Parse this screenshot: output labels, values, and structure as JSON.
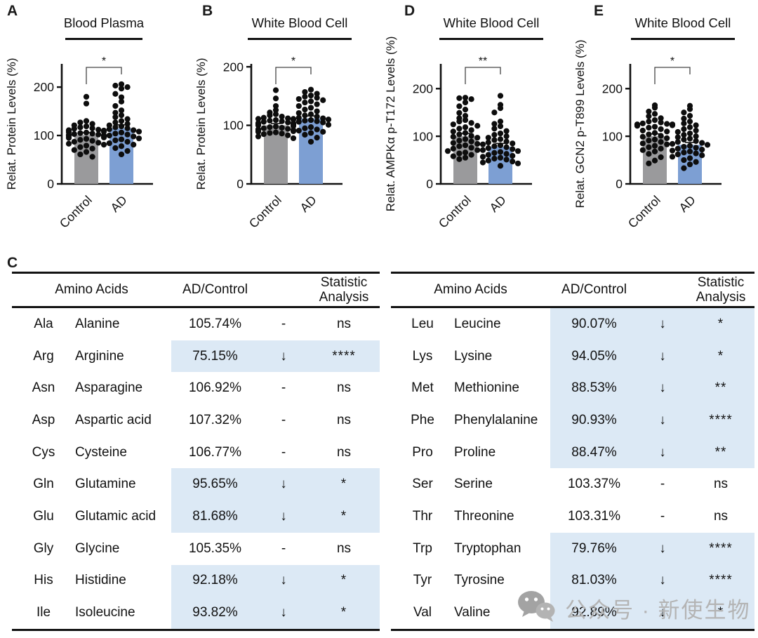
{
  "figure_type": "scientific-figure",
  "chart_data": [
    {
      "type": "bar",
      "panel": "A",
      "title": "Blood Plasma",
      "ylabel": "Relat. Protein Levels (%)",
      "categories": [
        "Control",
        "AD"
      ],
      "series": [
        {
          "name": "mean",
          "values": [
            101,
            115
          ]
        }
      ],
      "sem": [
        5,
        7
      ],
      "significance": "*",
      "yticks": [
        0,
        100,
        200
      ],
      "ylim": [
        0,
        248
      ],
      "grid": false,
      "bar_colors": [
        "#9a9a9c",
        "#7d9fd3"
      ],
      "points": {
        "Control": [
          180,
          166,
          130,
          127,
          124,
          121,
          119,
          117,
          115,
          114,
          112,
          111,
          110,
          109,
          108,
          107,
          106,
          105,
          104,
          103,
          102,
          101,
          100,
          99,
          97,
          95,
          93,
          91,
          89,
          87,
          85,
          83,
          81,
          79,
          76,
          73,
          70,
          66,
          61,
          56
        ],
        "AD": [
          206,
          203,
          200,
          197,
          186,
          179,
          170,
          161,
          152,
          147,
          142,
          138,
          134,
          130,
          127,
          124,
          121,
          119,
          117,
          115,
          113,
          111,
          110,
          108,
          106,
          104,
          102,
          100,
          98,
          96,
          94,
          92,
          90,
          87,
          84,
          81,
          78,
          74,
          68,
          61
        ]
      }
    },
    {
      "type": "bar",
      "panel": "B",
      "title": "White Blood Cell",
      "ylabel": "Relat. Protein Levels (%)",
      "categories": [
        "Control",
        "AD"
      ],
      "series": [
        {
          "name": "mean",
          "values": [
            100,
            112
          ]
        }
      ],
      "sem": [
        3,
        4
      ],
      "significance": "*",
      "yticks": [
        0,
        100,
        200
      ],
      "ylim": [
        0,
        205
      ],
      "grid": false,
      "bar_colors": [
        "#9a9a9c",
        "#7d9fd3"
      ],
      "points": {
        "Control": [
          160,
          146,
          133,
          126,
          122,
          119,
          117,
          115,
          113,
          112,
          111,
          110,
          109,
          108,
          107,
          106,
          105,
          104,
          103,
          102,
          101,
          100,
          99,
          98,
          97,
          96,
          95,
          94,
          93,
          92,
          91,
          90,
          89,
          88,
          87,
          86,
          85,
          83,
          81,
          78
        ],
        "AD": [
          161,
          157,
          154,
          151,
          149,
          147,
          145,
          143,
          141,
          139,
          136,
          133,
          130,
          127,
          124,
          121,
          119,
          117,
          115,
          113,
          112,
          111,
          110,
          109,
          108,
          107,
          106,
          105,
          103,
          101,
          99,
          97,
          95,
          93,
          91,
          89,
          87,
          84,
          79,
          72
        ]
      }
    },
    {
      "type": "bar",
      "panel": "D",
      "title": "White Blood Cell",
      "ylabel": "Relat. AMPKα p-T172 Levels (%)",
      "categories": [
        "Control",
        "AD"
      ],
      "series": [
        {
          "name": "mean",
          "values": [
            100,
            78
          ]
        }
      ],
      "sem": [
        6,
        7
      ],
      "significance": "**",
      "yticks": [
        0,
        100,
        200
      ],
      "ylim": [
        0,
        252
      ],
      "grid": false,
      "bar_colors": [
        "#9a9a9c",
        "#7d9fd3"
      ],
      "points": {
        "Control": [
          181,
          180,
          178,
          171,
          163,
          156,
          149,
          143,
          138,
          134,
          131,
          128,
          125,
          122,
          119,
          116,
          113,
          110,
          107,
          104,
          101,
          99,
          97,
          94,
          91,
          89,
          86,
          84,
          81,
          79,
          76,
          74,
          71,
          69,
          66,
          64,
          61,
          58,
          55,
          52
        ],
        "AD": [
          185,
          166,
          159,
          150,
          131,
          126,
          121,
          116,
          111,
          106,
          103,
          100,
          97,
          94,
          92,
          89,
          87,
          85,
          83,
          81,
          79,
          77,
          75,
          73,
          71,
          69,
          67,
          65,
          63,
          61,
          59,
          57,
          55,
          53,
          51,
          49,
          47,
          45,
          43,
          38
        ]
      }
    },
    {
      "type": "bar",
      "panel": "E",
      "title": "White Blood Cell",
      "ylabel": "Relat. GCN2 p-T899 Levels (%)",
      "categories": [
        "Control",
        "AD"
      ],
      "series": [
        {
          "name": "mean",
          "values": [
            100,
            82
          ]
        }
      ],
      "sem": [
        5,
        5
      ],
      "significance": "*",
      "yticks": [
        0,
        100,
        200
      ],
      "ylim": [
        0,
        252
      ],
      "grid": false,
      "bar_colors": [
        "#9a9a9c",
        "#7d9fd3"
      ],
      "points": {
        "Control": [
          165,
          160,
          152,
          147,
          142,
          138,
          134,
          131,
          129,
          127,
          126,
          125,
          125,
          124,
          123,
          122,
          120,
          118,
          115,
          112,
          110,
          107,
          104,
          101,
          99,
          96,
          93,
          91,
          88,
          85,
          83,
          80,
          77,
          74,
          71,
          68,
          63,
          56,
          49,
          43
        ],
        "AD": [
          164,
          157,
          150,
          143,
          137,
          131,
          127,
          123,
          119,
          115,
          112,
          109,
          106,
          103,
          100,
          98,
          95,
          93,
          90,
          88,
          86,
          84,
          82,
          80,
          78,
          76,
          74,
          72,
          70,
          68,
          66,
          64,
          62,
          60,
          57,
          54,
          50,
          46,
          41,
          33
        ]
      }
    }
  ],
  "table_c": {
    "panel": "C",
    "headers": {
      "amino": "Amino Acids",
      "ratio": "AD/Control",
      "stat_line1": "Statistic",
      "stat_line2": "Analysis"
    },
    "tables": [
      {
        "rows": [
          {
            "abbr": "Ala",
            "name": "Alanine",
            "value": "105.74%",
            "trend": "-",
            "stat": "ns",
            "highlight": false
          },
          {
            "abbr": "Arg",
            "name": "Arginine",
            "value": "75.15%",
            "trend": "↓",
            "stat": "****",
            "highlight": true
          },
          {
            "abbr": "Asn",
            "name": "Asparagine",
            "value": "106.92%",
            "trend": "-",
            "stat": "ns",
            "highlight": false
          },
          {
            "abbr": "Asp",
            "name": "Aspartic acid",
            "value": "107.32%",
            "trend": "-",
            "stat": "ns",
            "highlight": false
          },
          {
            "abbr": "Cys",
            "name": "Cysteine",
            "value": "106.77%",
            "trend": "-",
            "stat": "ns",
            "highlight": false
          },
          {
            "abbr": "Gln",
            "name": "Glutamine",
            "value": "95.65%",
            "trend": "↓",
            "stat": "*",
            "highlight": true
          },
          {
            "abbr": "Glu",
            "name": "Glutamic acid",
            "value": "81.68%",
            "trend": "↓",
            "stat": "*",
            "highlight": true
          },
          {
            "abbr": "Gly",
            "name": "Glycine",
            "value": "105.35%",
            "trend": "-",
            "stat": "ns",
            "highlight": false
          },
          {
            "abbr": "His",
            "name": "Histidine",
            "value": "92.18%",
            "trend": "↓",
            "stat": "*",
            "highlight": true
          },
          {
            "abbr": "Ile",
            "name": "Isoleucine",
            "value": "93.82%",
            "trend": "↓",
            "stat": "*",
            "highlight": true
          }
        ]
      },
      {
        "rows": [
          {
            "abbr": "Leu",
            "name": "Leucine",
            "value": "90.07%",
            "trend": "↓",
            "stat": "*",
            "highlight": true
          },
          {
            "abbr": "Lys",
            "name": "Lysine",
            "value": "94.05%",
            "trend": "↓",
            "stat": "*",
            "highlight": true
          },
          {
            "abbr": "Met",
            "name": "Methionine",
            "value": "88.53%",
            "trend": "↓",
            "stat": "**",
            "highlight": true
          },
          {
            "abbr": "Phe",
            "name": "Phenylalanine",
            "value": "90.93%",
            "trend": "↓",
            "stat": "****",
            "highlight": true
          },
          {
            "abbr": "Pro",
            "name": "Proline",
            "value": "88.47%",
            "trend": "↓",
            "stat": "**",
            "highlight": true
          },
          {
            "abbr": "Ser",
            "name": "Serine",
            "value": "103.37%",
            "trend": "-",
            "stat": "ns",
            "highlight": false
          },
          {
            "abbr": "Thr",
            "name": "Threonine",
            "value": "103.31%",
            "trend": "-",
            "stat": "ns",
            "highlight": false
          },
          {
            "abbr": "Trp",
            "name": "Tryptophan",
            "value": "79.76%",
            "trend": "↓",
            "stat": "****",
            "highlight": true
          },
          {
            "abbr": "Tyr",
            "name": "Tyrosine",
            "value": "81.03%",
            "trend": "↓",
            "stat": "****",
            "highlight": true
          },
          {
            "abbr": "Val",
            "name": "Valine",
            "value": "92.89%",
            "trend": "↓",
            "stat": "*",
            "highlight": true
          }
        ]
      }
    ]
  },
  "watermark": {
    "icon": "wechat-icon",
    "text": "公众号 · 新使生物"
  },
  "colors": {
    "bar_control": "#9a9a9c",
    "bar_ad": "#7d9fd3",
    "highlight": "#dce9f5",
    "axis": "#111111",
    "watermark_text": "#b4b4b4",
    "watermark_icon": "#a3a3a3"
  }
}
